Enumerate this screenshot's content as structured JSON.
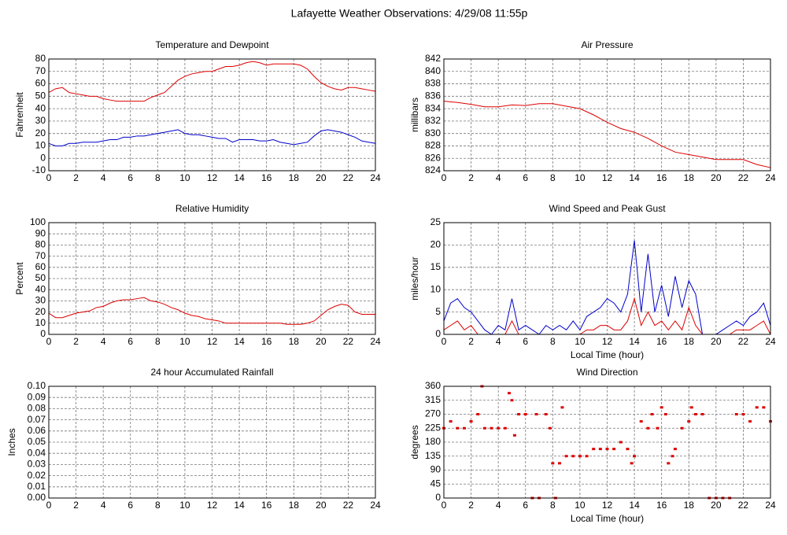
{
  "title": "Lafayette Weather Observations: 4/29/08 11:55p",
  "chart_data": [
    {
      "type": "line",
      "title": "Temperature and Dewpoint",
      "y_label": "Fahrenheit",
      "x": [
        0,
        0.5,
        1,
        1.5,
        2,
        2.5,
        3,
        3.5,
        4,
        4.5,
        5,
        5.5,
        6,
        6.5,
        7,
        7.5,
        8,
        8.5,
        9,
        9.5,
        10,
        10.5,
        11,
        11.5,
        12,
        12.5,
        13,
        13.5,
        14,
        14.5,
        15,
        15.5,
        16,
        16.5,
        17,
        17.5,
        18,
        18.5,
        19,
        19.5,
        20,
        20.5,
        21,
        21.5,
        22,
        22.5,
        23,
        23.5,
        24
      ],
      "series": [
        {
          "color": "#dd0000",
          "values": [
            53,
            56,
            57,
            53,
            52,
            51,
            50,
            50,
            48,
            47,
            46,
            46,
            46,
            46,
            46,
            49,
            51,
            53,
            58,
            63,
            66,
            68,
            69,
            70,
            70,
            72,
            74,
            74,
            75,
            77,
            78,
            77,
            75,
            76,
            76,
            76,
            76,
            75,
            72,
            66,
            61,
            58,
            56,
            55,
            57,
            57,
            56,
            55,
            54
          ]
        },
        {
          "color": "#0000cc",
          "values": [
            12,
            10,
            10,
            12,
            12,
            13,
            13,
            13,
            14,
            15,
            15,
            17,
            17,
            18,
            18,
            19,
            20,
            21,
            22,
            23,
            20,
            19,
            19,
            18,
            17,
            16,
            16,
            13,
            15,
            15,
            15,
            14,
            14,
            15,
            13,
            12,
            11,
            12,
            13,
            18,
            22,
            23,
            22,
            21,
            19,
            17,
            14,
            13,
            12
          ]
        }
      ],
      "xlim": [
        0,
        24
      ],
      "xticks": [
        0,
        2,
        4,
        6,
        8,
        10,
        12,
        14,
        16,
        18,
        20,
        22,
        24
      ],
      "ylim": [
        -10,
        80
      ],
      "yticks": [
        -10,
        0,
        10,
        20,
        30,
        40,
        50,
        60,
        70,
        80
      ],
      "grid": true
    },
    {
      "type": "line",
      "title": "Air Pressure",
      "y_label": "millibars",
      "x": [
        0,
        1,
        2,
        3,
        4,
        5,
        6,
        7,
        8,
        9,
        10,
        11,
        12,
        13,
        14,
        15,
        16,
        17,
        18,
        19,
        20,
        21,
        22,
        23,
        24
      ],
      "series": [
        {
          "color": "#dd0000",
          "values": [
            835.2,
            835.0,
            834.7,
            834.3,
            834.3,
            834.6,
            834.5,
            834.8,
            834.8,
            834.4,
            834.0,
            833.0,
            831.8,
            830.8,
            830.2,
            829.2,
            828.0,
            827.0,
            826.6,
            826.2,
            825.8,
            825.8,
            825.8,
            825.0,
            824.5
          ]
        }
      ],
      "xlim": [
        0,
        24
      ],
      "xticks": [
        0,
        2,
        4,
        6,
        8,
        10,
        12,
        14,
        16,
        18,
        20,
        22,
        24
      ],
      "ylim": [
        824,
        842
      ],
      "yticks": [
        824,
        826,
        828,
        830,
        832,
        834,
        836,
        838,
        840,
        842
      ],
      "grid": true
    },
    {
      "type": "line",
      "title": "Relative Humidity",
      "y_label": "Percent",
      "x": [
        0,
        0.5,
        1,
        1.5,
        2,
        2.5,
        3,
        3.5,
        4,
        4.5,
        5,
        5.5,
        6,
        6.5,
        7,
        7.5,
        8,
        8.5,
        9,
        9.5,
        10,
        10.5,
        11,
        11.5,
        12,
        12.5,
        13,
        13.5,
        14,
        14.5,
        15,
        15.5,
        16,
        16.5,
        17,
        17.5,
        18,
        18.5,
        19,
        19.5,
        20,
        20.5,
        21,
        21.5,
        22,
        22.5,
        23,
        23.5,
        24
      ],
      "series": [
        {
          "color": "#dd0000",
          "values": [
            19,
            15,
            15,
            17,
            19,
            20,
            21,
            24,
            25,
            28,
            30,
            31,
            31,
            32,
            33,
            30,
            29,
            27,
            24,
            22,
            19,
            17,
            16,
            14,
            13,
            12,
            10,
            10,
            10,
            10,
            10,
            10,
            10,
            10,
            10,
            9,
            9,
            9,
            10,
            12,
            17,
            22,
            25,
            27,
            26,
            20,
            18,
            18,
            18
          ]
        }
      ],
      "xlim": [
        0,
        24
      ],
      "xticks": [
        0,
        2,
        4,
        6,
        8,
        10,
        12,
        14,
        16,
        18,
        20,
        22,
        24
      ],
      "ylim": [
        0,
        100
      ],
      "yticks": [
        0,
        10,
        20,
        30,
        40,
        50,
        60,
        70,
        80,
        90,
        100
      ],
      "grid": true
    },
    {
      "type": "line",
      "title": "Wind Speed and Peak Gust",
      "y_label": "miles/hour",
      "x_label": "Local Time (hour)",
      "x": [
        0,
        0.5,
        1,
        1.5,
        2,
        2.5,
        3,
        3.5,
        4,
        4.5,
        5,
        5.5,
        6,
        6.5,
        7,
        7.5,
        8,
        8.5,
        9,
        9.5,
        10,
        10.5,
        11,
        11.5,
        12,
        12.5,
        13,
        13.5,
        14,
        14.5,
        15,
        15.5,
        16,
        16.5,
        17,
        17.5,
        18,
        18.5,
        19,
        19.5,
        20,
        20.5,
        21,
        21.5,
        22,
        22.5,
        23,
        23.5,
        24
      ],
      "series": [
        {
          "color": "#0000cc",
          "values": [
            3,
            7,
            8,
            6,
            5,
            3,
            1,
            0,
            2,
            1,
            8,
            1,
            2,
            1,
            0,
            2,
            1,
            2,
            1,
            3,
            1,
            4,
            5,
            6,
            8,
            7,
            5,
            9,
            21,
            5,
            18,
            5,
            11,
            4,
            13,
            6,
            12,
            9,
            0,
            0,
            0,
            1,
            2,
            3,
            2,
            4,
            5,
            7,
            2
          ]
        },
        {
          "color": "#dd0000",
          "values": [
            1,
            2,
            3,
            1,
            2,
            0,
            0,
            0,
            0,
            0,
            3,
            0,
            0,
            0,
            0,
            0,
            0,
            0,
            0,
            0,
            0,
            1,
            1,
            2,
            2,
            1,
            1,
            3,
            8,
            2,
            5,
            2,
            3,
            1,
            3,
            1,
            6,
            2,
            0,
            0,
            0,
            0,
            0,
            1,
            1,
            1,
            2,
            3,
            0
          ]
        }
      ],
      "xlim": [
        0,
        24
      ],
      "xticks": [
        0,
        2,
        4,
        6,
        8,
        10,
        12,
        14,
        16,
        18,
        20,
        22,
        24
      ],
      "ylim": [
        0,
        25
      ],
      "yticks": [
        0,
        5,
        10,
        15,
        20,
        25
      ],
      "grid": true
    },
    {
      "type": "line",
      "title": "24 hour Accumulated Rainfall",
      "y_label": "Inches",
      "x": [
        0,
        24
      ],
      "series": [
        {
          "color": "#dd0000",
          "values": [
            0,
            0
          ]
        }
      ],
      "xlim": [
        0,
        24
      ],
      "xticks": [
        0,
        2,
        4,
        6,
        8,
        10,
        12,
        14,
        16,
        18,
        20,
        22,
        24
      ],
      "ylim": [
        0,
        0.1
      ],
      "yticks": [
        {
          "value": 0,
          "label": "0.00"
        },
        {
          "value": 0.01,
          "label": "0.01"
        },
        {
          "value": 0.02,
          "label": "0.02"
        },
        {
          "value": 0.03,
          "label": "0.03"
        },
        {
          "value": 0.04,
          "label": "0.04"
        },
        {
          "value": 0.05,
          "label": "0.05"
        },
        {
          "value": 0.06,
          "label": "0.06"
        },
        {
          "value": 0.07,
          "label": "0.07"
        },
        {
          "value": 0.08,
          "label": "0.08"
        },
        {
          "value": 0.09,
          "label": "0.09"
        },
        {
          "value": 0.1,
          "label": "0.10"
        }
      ],
      "grid": true
    },
    {
      "type": "scatter",
      "title": "Wind Direction",
      "y_label": "degrees",
      "x_label": "Local Time (hour)",
      "color": "#dd0000",
      "x": [
        0,
        0.5,
        1,
        1.5,
        2,
        2.5,
        2.8,
        3,
        3.5,
        4,
        4.5,
        4.8,
        5,
        5.2,
        5.5,
        6,
        6.5,
        6.8,
        7,
        7.5,
        7.8,
        8,
        8.2,
        8.5,
        8.7,
        9,
        9.5,
        10,
        10.5,
        11,
        11.5,
        12,
        12.5,
        13,
        13.5,
        13.8,
        14,
        14.5,
        15,
        15.3,
        15.7,
        16,
        16.3,
        16.5,
        16.8,
        17,
        17.5,
        18,
        18.2,
        18.5,
        19,
        19.5,
        20,
        20.5,
        21,
        21.5,
        22,
        22.5,
        23,
        23.5,
        24
      ],
      "values": [
        225,
        247,
        225,
        225,
        247,
        270,
        360,
        225,
        225,
        225,
        225,
        338,
        315,
        202,
        270,
        270,
        0,
        270,
        0,
        270,
        225,
        112,
        0,
        112,
        292,
        135,
        135,
        135,
        135,
        158,
        158,
        158,
        158,
        180,
        158,
        112,
        135,
        247,
        225,
        270,
        225,
        292,
        270,
        112,
        135,
        158,
        225,
        247,
        292,
        270,
        270,
        0,
        0,
        0,
        0,
        270,
        270,
        247,
        292,
        292,
        247
      ],
      "xlim": [
        0,
        24
      ],
      "xticks": [
        0,
        2,
        4,
        6,
        8,
        10,
        12,
        14,
        16,
        18,
        20,
        22,
        24
      ],
      "ylim": [
        0,
        360
      ],
      "yticks": [
        0,
        45,
        90,
        135,
        180,
        225,
        270,
        315,
        360
      ],
      "grid": true
    }
  ]
}
